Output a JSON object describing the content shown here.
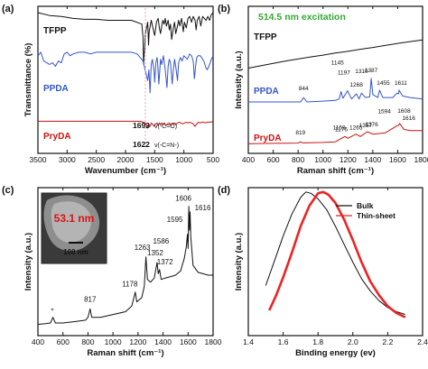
{
  "chart_data": [
    {
      "panel": "(a)",
      "type": "line",
      "xlabel": "Wavenumber (cm⁻¹)",
      "ylabel": "Transmittance (%)",
      "xlim": [
        3500,
        500
      ],
      "x_reversed": true,
      "x_ticks": [
        "3500",
        "3000",
        "2500",
        "2000",
        "1500",
        "1000",
        "500"
      ],
      "grid": false,
      "series": [
        {
          "name": "TFPP",
          "color": "#111111",
          "label_color": "#111111",
          "x": [
            3500,
            3300,
            3100,
            3000,
            2900,
            2700,
            2500,
            2300,
            2100,
            1900,
            1720,
            1700,
            1690,
            1660,
            1620,
            1605,
            1595,
            1560,
            1530,
            1500,
            1470,
            1440,
            1420,
            1400,
            1380,
            1360,
            1340,
            1320,
            1300,
            1270,
            1250,
            1230,
            1210,
            1180,
            1160,
            1140,
            1110,
            1090,
            1070,
            1040,
            1010,
            990,
            960,
            930,
            900,
            870,
            840,
            810,
            790,
            770,
            740,
            710,
            680,
            650,
            620,
            590,
            560,
            530,
            500
          ],
          "y": [
            97,
            95.5,
            95,
            94.5,
            94,
            93.5,
            93.5,
            93,
            93,
            93,
            91,
            84,
            70,
            86,
            92,
            80,
            87,
            93,
            89,
            85,
            92,
            94,
            89,
            86,
            90,
            93,
            91,
            94,
            90,
            93,
            88,
            91,
            83,
            89,
            92,
            86,
            90,
            93,
            90,
            94,
            87,
            92,
            89,
            94,
            95,
            92,
            95,
            93,
            88,
            93,
            95,
            90,
            95,
            94,
            93,
            95,
            93,
            96,
            97
          ]
        },
        {
          "name": "PPDA",
          "color": "#3355cc",
          "label_color": "#3355cc",
          "x": [
            3500,
            3450,
            3400,
            3350,
            3300,
            3250,
            3200,
            3150,
            3100,
            3050,
            3000,
            2950,
            2900,
            2800,
            2700,
            2600,
            2500,
            2400,
            2300,
            2200,
            2100,
            2000,
            1900,
            1800,
            1700,
            1650,
            1620,
            1600,
            1580,
            1560,
            1540,
            1510,
            1500,
            1480,
            1460,
            1450,
            1430,
            1400,
            1380,
            1350,
            1320,
            1290,
            1270,
            1250,
            1230,
            1200,
            1180,
            1160,
            1140,
            1110,
            1090,
            1060,
            1030,
            1000,
            970,
            940,
            900,
            870,
            840,
            820,
            800,
            780,
            760,
            740,
            720,
            700,
            680,
            660,
            640,
            620,
            600,
            560,
            530,
            500
          ],
          "y": [
            60,
            62,
            57,
            56,
            55,
            56,
            54,
            57,
            56,
            61,
            62,
            60,
            61,
            62,
            62,
            61,
            62,
            62,
            62,
            62,
            62,
            62,
            62,
            61,
            57,
            50,
            46,
            52,
            39,
            55,
            58,
            51,
            45,
            56,
            59,
            56,
            44,
            58,
            55,
            60,
            52,
            42,
            54,
            58,
            56,
            44,
            52,
            58,
            54,
            46,
            56,
            59,
            57,
            60,
            59,
            58,
            61,
            60,
            57,
            47,
            54,
            59,
            60,
            60,
            60,
            59,
            58,
            57,
            55,
            53,
            52,
            55,
            58,
            60
          ]
        },
        {
          "name": "PryDA",
          "color": "#cc1111",
          "label_color": "#cc1111",
          "x": [
            3500,
            3300,
            3100,
            2900,
            2700,
            2500,
            2300,
            2100,
            1900,
            1750,
            1700,
            1660,
            1640,
            1622,
            1600,
            1580,
            1560,
            1540,
            1510,
            1490,
            1460,
            1440,
            1420,
            1400,
            1380,
            1360,
            1340,
            1310,
            1280,
            1250,
            1220,
            1200,
            1180,
            1160,
            1140,
            1110,
            1080,
            1050,
            1020,
            990,
            960,
            930,
            900,
            870,
            840,
            810,
            780,
            750,
            720,
            690,
            660,
            630,
            600,
            560,
            530,
            500
          ],
          "y": [
            29,
            29,
            29,
            29,
            29,
            29,
            29,
            29,
            29,
            29,
            28.5,
            28,
            26.5,
            25,
            27,
            26,
            28,
            27.5,
            26,
            27.5,
            28,
            26.5,
            28,
            27,
            28,
            27,
            28,
            26.5,
            27.5,
            28,
            26.5,
            28,
            27.5,
            28,
            27,
            28,
            28.5,
            28,
            27.5,
            28,
            28.5,
            28,
            28.5,
            28,
            27.5,
            26,
            27.5,
            28.5,
            28,
            28.5,
            28.5,
            28,
            28.5,
            28.5,
            28.5,
            29
          ]
        }
      ],
      "annotations": [
        {
          "text": "1693",
          "suffix": "ν(-C=O)",
          "x": 1693
        },
        {
          "text": "1622",
          "suffix": "ν(-C=N-)",
          "x": 1622
        }
      ]
    },
    {
      "panel": "(b)",
      "type": "line",
      "title": "514.5 nm excitation",
      "title_color": "#33aa33",
      "xlabel": "Raman shift (cm⁻¹)",
      "ylabel": "Intensity (a.u.)",
      "xlim": [
        400,
        1800
      ],
      "x_ticks": [
        "400",
        "600",
        "800",
        "1000",
        "1200",
        "1400",
        "1600",
        "1800"
      ],
      "grid": false,
      "series": [
        {
          "name": "TFPP",
          "color": "#111111",
          "label_color": "#111111",
          "x": [
            400,
            500,
            600,
            700,
            800,
            900,
            1000,
            1100,
            1200,
            1300,
            1400,
            1500,
            1600,
            1700,
            1800
          ],
          "y": [
            20,
            24,
            28,
            32,
            35.5,
            39,
            42,
            45.5,
            48.5,
            52,
            55,
            58.5,
            62,
            65,
            68
          ]
        },
        {
          "name": "PPDA",
          "color": "#3355cc",
          "label_color": "#3355cc",
          "x": [
            400,
            600,
            800,
            820,
            844,
            870,
            1000,
            1100,
            1130,
            1145,
            1160,
            1197,
            1230,
            1268,
            1290,
            1310,
            1340,
            1376,
            1387,
            1400,
            1440,
            1455,
            1480,
            1560,
            1594,
            1608,
            1611,
            1640,
            1700,
            1800
          ],
          "y": [
            28,
            28,
            28,
            28,
            31,
            28,
            28.5,
            29,
            30,
            35,
            30.5,
            35.5,
            30,
            33.5,
            30,
            34,
            31,
            31.5,
            44,
            33,
            31,
            36,
            31,
            31,
            34,
            33.5,
            36,
            32,
            31,
            30
          ]
        },
        {
          "name": "PryDA",
          "color": "#cc1111",
          "label_color": "#cc1111",
          "x": [
            400,
            600,
            800,
            819,
            840,
            1000,
            1100,
            1159,
            1176,
            1200,
            1265,
            1300,
            1357,
            1400,
            1500,
            1594,
            1608,
            1616,
            1650,
            1700,
            1800
          ],
          "y": [
            8,
            8.2,
            8.5,
            9.5,
            8.6,
            9,
            9.5,
            13,
            14,
            12.5,
            16,
            14,
            18,
            16,
            17,
            23,
            23.5,
            25,
            20,
            19,
            19
          ]
        }
      ],
      "peak_labels": [
        {
          "text": "1145",
          "x": 1145,
          "series": "PPDA"
        },
        {
          "text": "1197",
          "x": 1197,
          "series": "PPDA"
        },
        {
          "text": "1310",
          "x": 1310,
          "series": "PPDA"
        },
        {
          "text": "1387",
          "x": 1387,
          "series": "PPDA"
        },
        {
          "text": "1455",
          "x": 1455,
          "series": "PPDA"
        },
        {
          "text": "844",
          "x": 844,
          "series": "PPDA"
        },
        {
          "text": "1268",
          "x": 1268,
          "series": "PPDA"
        },
        {
          "text": "1611",
          "x": 1611,
          "series": "PPDA"
        },
        {
          "text": "1159",
          "x": 1159,
          "series": "PryDA"
        },
        {
          "text": "1265",
          "x": 1265,
          "series": "PryDA"
        },
        {
          "text": "1376",
          "x": 1376,
          "series": "PryDA"
        },
        {
          "text": "1594",
          "x": 1594,
          "series": "PryDA"
        },
        {
          "text": "1608",
          "x": 1608,
          "series": "PryDA"
        },
        {
          "text": "1176",
          "x": 1176,
          "series": "PryDA"
        },
        {
          "text": "1357",
          "x": 1357,
          "series": "PryDA"
        },
        {
          "text": "1616",
          "x": 1616,
          "series": "PryDA"
        },
        {
          "text": "819",
          "x": 819,
          "series": "PryDA"
        }
      ]
    },
    {
      "panel": "(c)",
      "type": "line",
      "xlabel": "Raman shift (cm⁻¹)",
      "ylabel": "Intensity (a.u.)",
      "xlim": [
        400,
        1800
      ],
      "x_ticks": [
        "400",
        "600",
        "800",
        "1000",
        "1200",
        "1400",
        "1600",
        "1800"
      ],
      "grid": false,
      "inset": {
        "thickness": "53.1 nm",
        "scale_bar": "100 nm"
      },
      "series": [
        {
          "name": "",
          "color": "#111111",
          "x": [
            400,
            460,
            500,
            520,
            540,
            600,
            700,
            780,
            800,
            817,
            830,
            900,
            1000,
            1100,
            1150,
            1178,
            1190,
            1230,
            1250,
            1263,
            1275,
            1300,
            1330,
            1352,
            1362,
            1372,
            1385,
            1420,
            1460,
            1500,
            1540,
            1570,
            1586,
            1595,
            1600,
            1606,
            1612,
            1616,
            1622,
            1640,
            1680,
            1720,
            1760,
            1800
          ],
          "y": [
            8,
            8.5,
            9,
            13,
            9,
            9,
            10,
            11,
            13,
            19,
            13,
            13,
            15,
            17,
            21,
            31,
            24,
            27,
            35,
            56,
            40,
            38,
            41,
            52,
            44,
            47,
            40,
            41,
            42,
            43,
            46,
            55,
            63,
            72,
            62,
            92,
            75,
            88,
            70,
            50,
            45,
            44,
            43,
            43
          ]
        }
      ],
      "peak_labels": [
        {
          "text": "*",
          "x": 515
        },
        {
          "text": "817",
          "x": 817
        },
        {
          "text": "1178",
          "x": 1178
        },
        {
          "text": "1263",
          "x": 1263
        },
        {
          "text": "1352",
          "x": 1352
        },
        {
          "text": "1372",
          "x": 1372
        },
        {
          "text": "1586",
          "x": 1586
        },
        {
          "text": "1595",
          "x": 1595
        },
        {
          "text": "1606",
          "x": 1606
        },
        {
          "text": "1616",
          "x": 1616
        }
      ]
    },
    {
      "panel": "(d)",
      "type": "line",
      "xlabel": "Binding energy (ev)",
      "ylabel": "Intensity (a.u.)",
      "xlim": [
        1.4,
        2.4
      ],
      "x_ticks": [
        "1.4",
        "1.6",
        "1.8",
        "2.0",
        "2.2",
        "2.4"
      ],
      "grid": false,
      "legend_position": "top-right",
      "series": [
        {
          "name": "Bulk",
          "color": "#111111",
          "x": [
            1.5,
            1.55,
            1.6,
            1.65,
            1.7,
            1.73,
            1.76,
            1.8,
            1.85,
            1.9,
            1.95,
            2.0,
            2.05,
            2.1,
            2.15,
            2.2,
            2.25,
            2.3
          ],
          "y": [
            31,
            49,
            67,
            83,
            95,
            99,
            98,
            94,
            86,
            74,
            61,
            48,
            36,
            27,
            20,
            15,
            12,
            10
          ]
        },
        {
          "name": "Thin-sheet",
          "color": "#ee2222",
          "x": [
            1.52,
            1.56,
            1.6,
            1.65,
            1.7,
            1.75,
            1.8,
            1.83,
            1.86,
            1.9,
            1.95,
            2.0,
            2.05,
            2.1,
            2.15,
            2.2,
            2.25,
            2.3
          ],
          "y": [
            13,
            24,
            37,
            55,
            74,
            89,
            98,
            99,
            97,
            91,
            79,
            64,
            48,
            34,
            24,
            16,
            11,
            8
          ]
        }
      ]
    }
  ]
}
